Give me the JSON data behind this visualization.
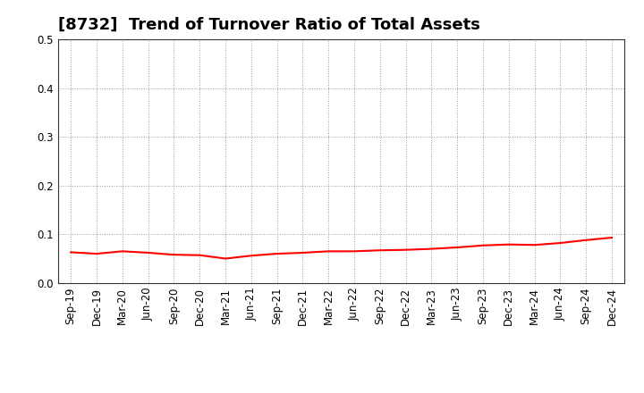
{
  "title": "[8732]  Trend of Turnover Ratio of Total Assets",
  "x_labels": [
    "Sep-19",
    "Dec-19",
    "Mar-20",
    "Jun-20",
    "Sep-20",
    "Dec-20",
    "Mar-21",
    "Jun-21",
    "Sep-21",
    "Dec-21",
    "Mar-22",
    "Jun-22",
    "Sep-22",
    "Dec-22",
    "Mar-23",
    "Jun-23",
    "Sep-23",
    "Dec-23",
    "Mar-24",
    "Jun-24",
    "Sep-24",
    "Dec-24"
  ],
  "y_values": [
    0.063,
    0.06,
    0.065,
    0.062,
    0.058,
    0.057,
    0.05,
    0.056,
    0.06,
    0.062,
    0.065,
    0.065,
    0.067,
    0.068,
    0.07,
    0.073,
    0.077,
    0.079,
    0.078,
    0.082,
    0.088,
    0.093
  ],
  "line_color": "#ff0000",
  "line_width": 1.5,
  "ylim": [
    0.0,
    0.5
  ],
  "yticks": [
    0.0,
    0.1,
    0.2,
    0.3,
    0.4,
    0.5
  ],
  "bg_color": "#ffffff",
  "plot_bg_color": "#ffffff",
  "grid_color": "#999999",
  "title_fontsize": 13,
  "tick_fontsize": 8.5,
  "spine_color": "#333333"
}
